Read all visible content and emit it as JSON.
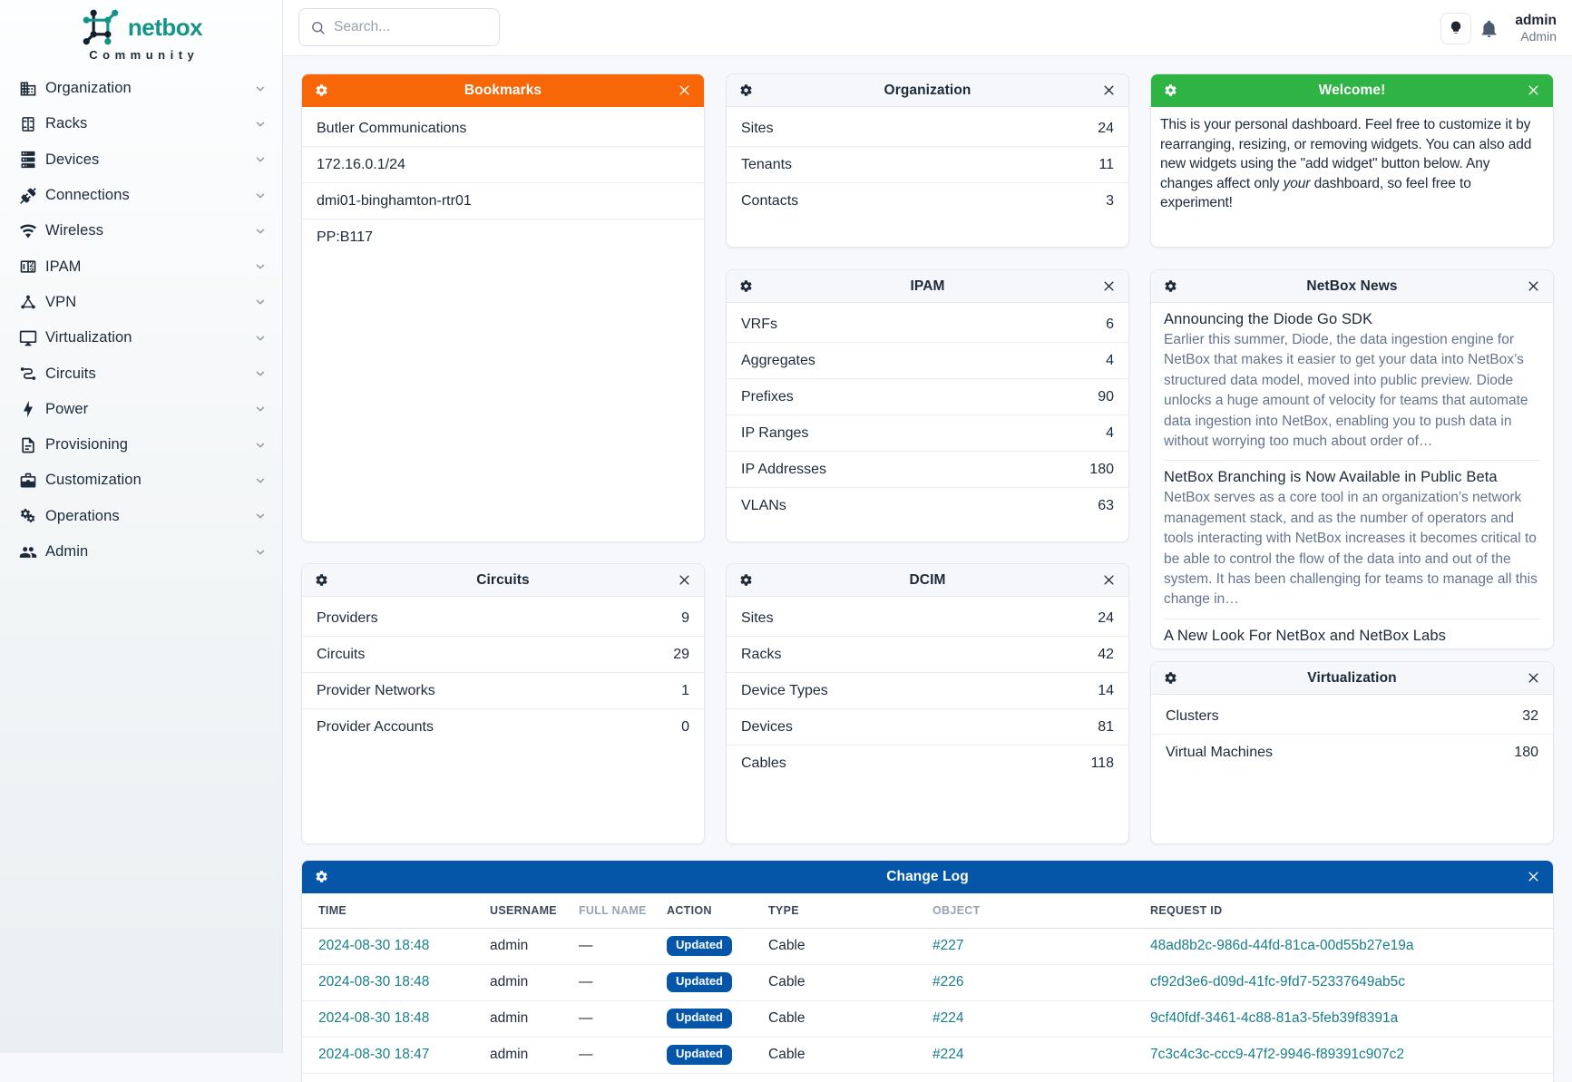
{
  "brand": {
    "name": "netbox",
    "subtitle": "Community"
  },
  "topbar": {
    "search_placeholder": "Search...",
    "user": {
      "name": "admin",
      "role": "Admin"
    }
  },
  "sidebar": {
    "items": [
      {
        "label": "Organization",
        "icon": "building"
      },
      {
        "label": "Racks",
        "icon": "rack"
      },
      {
        "label": "Devices",
        "icon": "server"
      },
      {
        "label": "Connections",
        "icon": "plug"
      },
      {
        "label": "Wireless",
        "icon": "wifi"
      },
      {
        "label": "IPAM",
        "icon": "counter"
      },
      {
        "label": "VPN",
        "icon": "graph"
      },
      {
        "label": "Virtualization",
        "icon": "monitor"
      },
      {
        "label": "Circuits",
        "icon": "transit"
      },
      {
        "label": "Power",
        "icon": "bolt"
      },
      {
        "label": "Provisioning",
        "icon": "document"
      },
      {
        "label": "Customization",
        "icon": "toolbox"
      },
      {
        "label": "Operations",
        "icon": "gears"
      },
      {
        "label": "Admin",
        "icon": "people"
      }
    ]
  },
  "colors": {
    "bookmarks_header": "#f76707",
    "welcome_header": "#2fb344",
    "changelog_header": "#0556a9",
    "link_teal": "#177e8a"
  },
  "widgets": {
    "bookmarks": {
      "title": "Bookmarks",
      "items": [
        {
          "label": "Butler Communications"
        },
        {
          "label": "172.16.0.1/24"
        },
        {
          "label": "dmi01-binghamton-rtr01"
        },
        {
          "label": "PP:B117"
        }
      ]
    },
    "organization": {
      "title": "Organization",
      "rows": [
        {
          "label": "Sites",
          "value": "24"
        },
        {
          "label": "Tenants",
          "value": "11"
        },
        {
          "label": "Contacts",
          "value": "3"
        }
      ]
    },
    "ipam": {
      "title": "IPAM",
      "rows": [
        {
          "label": "VRFs",
          "value": "6"
        },
        {
          "label": "Aggregates",
          "value": "4"
        },
        {
          "label": "Prefixes",
          "value": "90"
        },
        {
          "label": "IP Ranges",
          "value": "4"
        },
        {
          "label": "IP Addresses",
          "value": "180"
        },
        {
          "label": "VLANs",
          "value": "63"
        }
      ]
    },
    "welcome": {
      "title": "Welcome!",
      "body_before": "This is your personal dashboard. Feel free to customize it by rearranging, resizing, or removing widgets. You can also add new widgets using the \"add widget\" button below. Any changes affect only ",
      "body_italic": "your",
      "body_after": " dashboard, so feel free to experiment!"
    },
    "news": {
      "title": "NetBox News",
      "items": [
        {
          "title": "Announcing the Diode Go SDK",
          "excerpt": "Earlier this summer, Diode, the data ingestion engine for NetBox that makes it easier to get your data into NetBox’s structured data model, moved into public preview. Diode unlocks a huge amount of velocity for teams that automate data ingestion into NetBox, enabling you to push data in without worrying too much about order of…"
        },
        {
          "title": "NetBox Branching is Now Available in Public Beta",
          "excerpt": "NetBox serves as a core tool in an organization’s network management stack, and as the number of operators and tools interacting with NetBox increases it becomes critical to be able to control the flow of the data into and out of the system. It has been challenging for teams to manage all this change in…"
        },
        {
          "title": "A New Look For NetBox and NetBox Labs",
          "excerpt": ""
        }
      ]
    },
    "circuits": {
      "title": "Circuits",
      "rows": [
        {
          "label": "Providers",
          "value": "9"
        },
        {
          "label": "Circuits",
          "value": "29"
        },
        {
          "label": "Provider Networks",
          "value": "1"
        },
        {
          "label": "Provider Accounts",
          "value": "0"
        }
      ]
    },
    "dcim": {
      "title": "DCIM",
      "rows": [
        {
          "label": "Sites",
          "value": "24"
        },
        {
          "label": "Racks",
          "value": "42"
        },
        {
          "label": "Device Types",
          "value": "14"
        },
        {
          "label": "Devices",
          "value": "81"
        },
        {
          "label": "Cables",
          "value": "118"
        }
      ]
    },
    "virtualization": {
      "title": "Virtualization",
      "rows": [
        {
          "label": "Clusters",
          "value": "32"
        },
        {
          "label": "Virtual Machines",
          "value": "180"
        }
      ]
    },
    "changelog": {
      "title": "Change Log",
      "columns": [
        {
          "label": "TIME",
          "muted": false
        },
        {
          "label": "USERNAME",
          "muted": false
        },
        {
          "label": "FULL NAME",
          "muted": true
        },
        {
          "label": "ACTION",
          "muted": false
        },
        {
          "label": "TYPE",
          "muted": false
        },
        {
          "label": "OBJECT",
          "muted": true
        },
        {
          "label": "REQUEST ID",
          "muted": false
        }
      ],
      "rows": [
        {
          "time": "2024-08-30 18:48",
          "username": "admin",
          "full_name": "—",
          "action": "Updated",
          "type": "Cable",
          "object": "#227",
          "request_id": "48ad8b2c-986d-44fd-81ca-00d55b27e19a"
        },
        {
          "time": "2024-08-30 18:48",
          "username": "admin",
          "full_name": "—",
          "action": "Updated",
          "type": "Cable",
          "object": "#226",
          "request_id": "cf92d3e6-d09d-41fc-9fd7-52337649ab5c"
        },
        {
          "time": "2024-08-30 18:48",
          "username": "admin",
          "full_name": "—",
          "action": "Updated",
          "type": "Cable",
          "object": "#224",
          "request_id": "9cf40fdf-3461-4c88-81a3-5feb39f8391a"
        },
        {
          "time": "2024-08-30 18:47",
          "username": "admin",
          "full_name": "—",
          "action": "Updated",
          "type": "Cable",
          "object": "#224",
          "request_id": "7c3c4c3c-ccc9-47f2-9946-f89391c907c2"
        }
      ]
    }
  }
}
